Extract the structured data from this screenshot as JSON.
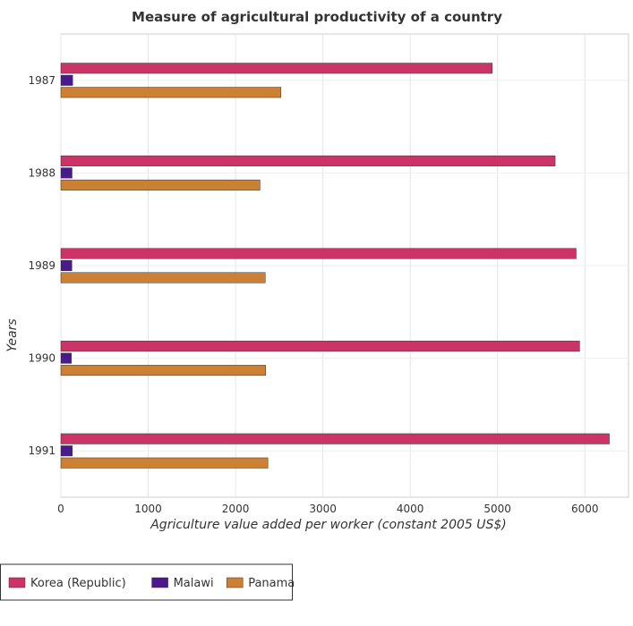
{
  "chart_data": {
    "type": "bar",
    "orientation": "horizontal",
    "title": "Measure of agricultural productivity of a country",
    "xlabel": "Agriculture value added per worker (constant 2005 US$)",
    "ylabel": "Years",
    "categories": [
      "1987",
      "1988",
      "1989",
      "1990",
      "1991"
    ],
    "xlim": [
      0,
      6500
    ],
    "xticks": [
      0,
      1000,
      2000,
      3000,
      4000,
      5000,
      6000
    ],
    "series": [
      {
        "name": "Korea (Republic)",
        "color": "#cc3366",
        "values": [
          4940,
          5660,
          5900,
          5940,
          6280
        ]
      },
      {
        "name": "Malawi",
        "color": "#4b1a8a",
        "values": [
          135,
          128,
          126,
          120,
          131
        ]
      },
      {
        "name": "Panama",
        "color": "#cc8033",
        "values": [
          2520,
          2280,
          2340,
          2345,
          2370
        ]
      }
    ],
    "legend_position": "bottom-left",
    "grid": true
  }
}
